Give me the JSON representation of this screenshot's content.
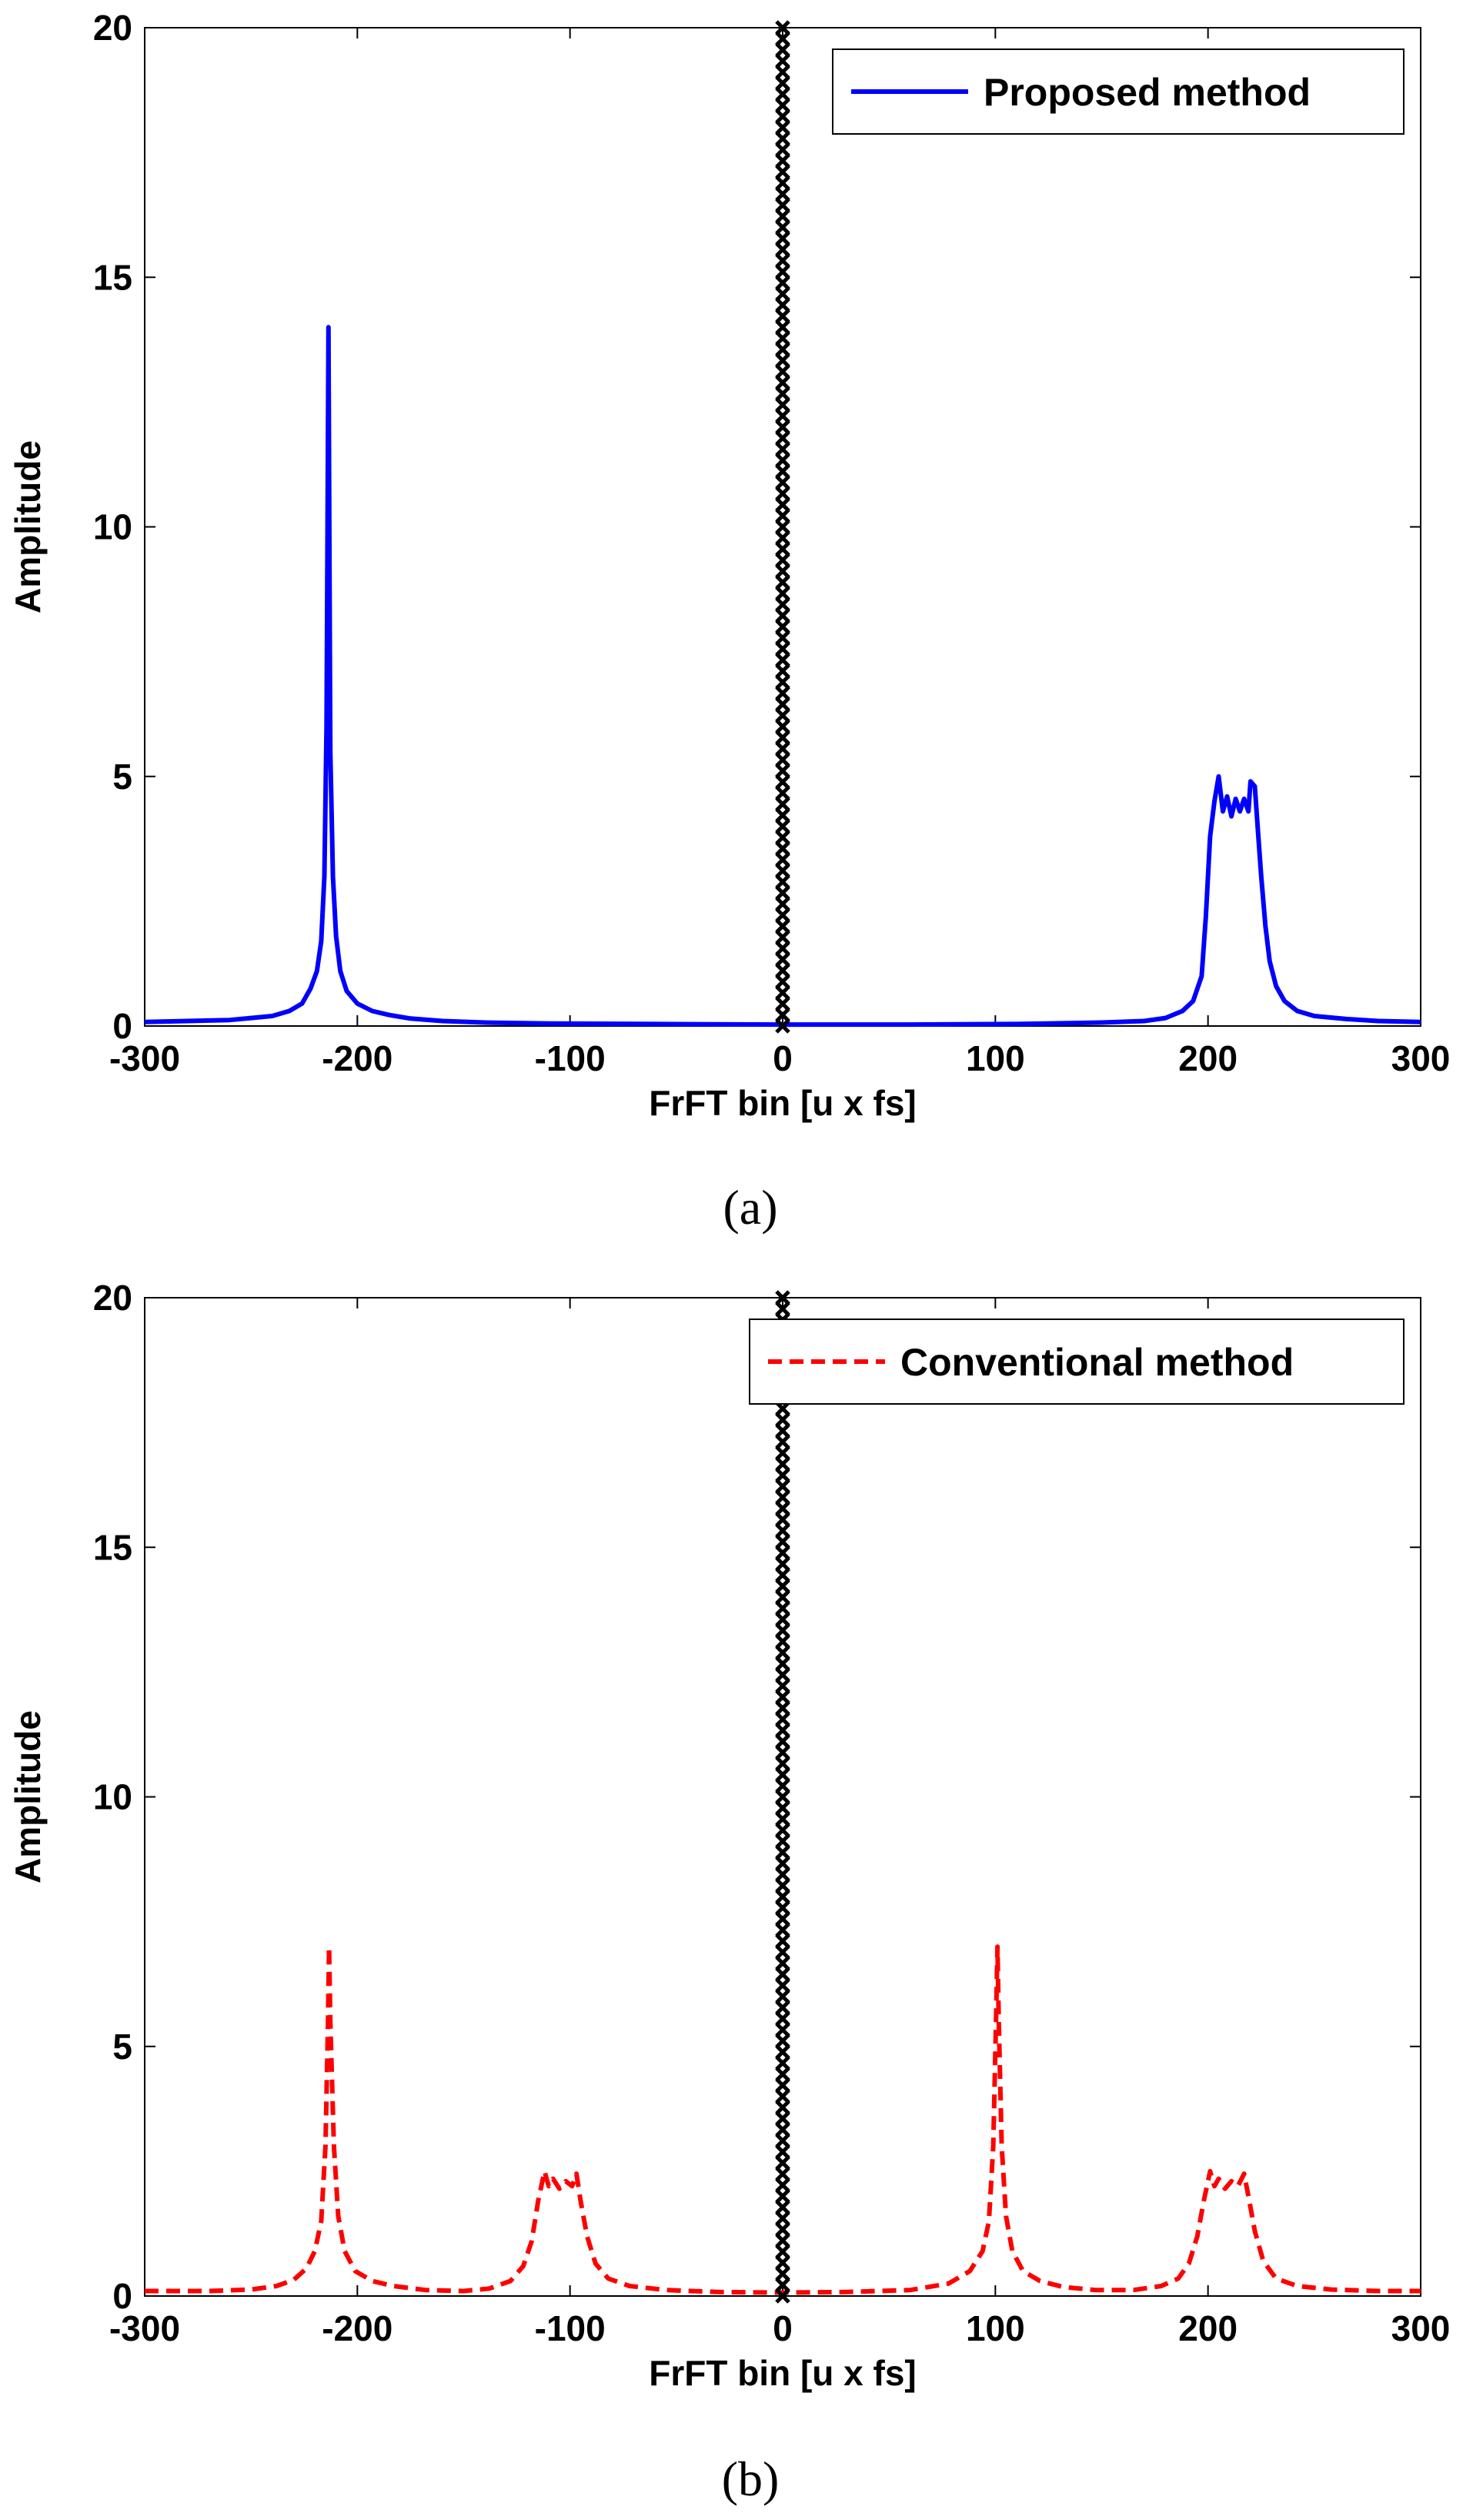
{
  "chart_data": [
    {
      "id": "a",
      "type": "line",
      "caption": "(a)",
      "xlabel": "FrFT bin [u x fs]",
      "ylabel": "Amplitude",
      "xlim": [
        -300,
        300
      ],
      "ylim": [
        0,
        20
      ],
      "xticks": [
        -300,
        -200,
        -100,
        0,
        100,
        200,
        300
      ],
      "yticks": [
        0,
        5,
        10,
        15,
        20
      ],
      "grid": false,
      "legend_position": "top-right",
      "series": [
        {
          "name": "Proposed method",
          "color": "#0000ff",
          "style": "solid",
          "points": [
            [
              -300,
              0.08
            ],
            [
              -280,
              0.1
            ],
            [
              -260,
              0.12
            ],
            [
              -250,
              0.16
            ],
            [
              -240,
              0.2
            ],
            [
              -232,
              0.3
            ],
            [
              -226,
              0.45
            ],
            [
              -222,
              0.75
            ],
            [
              -219,
              1.1
            ],
            [
              -217,
              1.7
            ],
            [
              -215.5,
              3.0
            ],
            [
              -214.5,
              6.0
            ],
            [
              -214,
              10.0
            ],
            [
              -213.6,
              14.0
            ],
            [
              -213.2,
              10.0
            ],
            [
              -212.7,
              5.5
            ],
            [
              -211.5,
              3.0
            ],
            [
              -210,
              1.8
            ],
            [
              -208,
              1.1
            ],
            [
              -205,
              0.7
            ],
            [
              -200,
              0.45
            ],
            [
              -193,
              0.3
            ],
            [
              -185,
              0.22
            ],
            [
              -175,
              0.15
            ],
            [
              -160,
              0.1
            ],
            [
              -140,
              0.07
            ],
            [
              -110,
              0.05
            ],
            [
              -60,
              0.04
            ],
            [
              -3,
              0.03
            ],
            [
              3,
              0.03
            ],
            [
              60,
              0.03
            ],
            [
              110,
              0.04
            ],
            [
              150,
              0.07
            ],
            [
              170,
              0.1
            ],
            [
              180,
              0.16
            ],
            [
              188,
              0.3
            ],
            [
              193,
              0.5
            ],
            [
              197,
              1.0
            ],
            [
              199,
              2.2
            ],
            [
              201,
              3.8
            ],
            [
              203,
              4.5
            ],
            [
              205,
              5.0
            ],
            [
              207,
              4.3
            ],
            [
              209,
              4.6
            ],
            [
              211,
              4.2
            ],
            [
              213,
              4.55
            ],
            [
              215,
              4.3
            ],
            [
              217,
              4.55
            ],
            [
              219,
              4.3
            ],
            [
              220,
              4.9
            ],
            [
              222,
              4.8
            ],
            [
              223.5,
              3.9
            ],
            [
              225,
              3.0
            ],
            [
              227,
              2.0
            ],
            [
              229,
              1.3
            ],
            [
              232,
              0.8
            ],
            [
              236,
              0.5
            ],
            [
              242,
              0.3
            ],
            [
              250,
              0.2
            ],
            [
              265,
              0.14
            ],
            [
              280,
              0.1
            ],
            [
              300,
              0.08
            ]
          ]
        },
        {
          "name": "center marker",
          "color": "#000000",
          "style": "x-markers",
          "x": 0,
          "y_from": 0,
          "y_to": 20,
          "count": 90
        }
      ]
    },
    {
      "id": "b",
      "type": "line",
      "caption": "(b)",
      "xlabel": "FrFT bin [u x fs]",
      "ylabel": "Amplitude",
      "xlim": [
        -300,
        300
      ],
      "ylim": [
        0,
        20
      ],
      "xticks": [
        -300,
        -200,
        -100,
        0,
        100,
        200,
        300
      ],
      "yticks": [
        0,
        5,
        10,
        15,
        20
      ],
      "grid": false,
      "legend_position": "top-right",
      "series": [
        {
          "name": "Conventional method",
          "color": "#ff0000",
          "style": "dashed",
          "points": [
            [
              -300,
              0.1
            ],
            [
              -270,
              0.1
            ],
            [
              -250,
              0.13
            ],
            [
              -238,
              0.2
            ],
            [
              -230,
              0.32
            ],
            [
              -224,
              0.55
            ],
            [
              -220,
              0.9
            ],
            [
              -217,
              1.5
            ],
            [
              -215,
              3.0
            ],
            [
              -213.8,
              5.5
            ],
            [
              -213.3,
              7.0
            ],
            [
              -212.7,
              5.5
            ],
            [
              -211,
              3.0
            ],
            [
              -209,
              1.6
            ],
            [
              -206,
              0.9
            ],
            [
              -201,
              0.5
            ],
            [
              -193,
              0.3
            ],
            [
              -183,
              0.2
            ],
            [
              -168,
              0.12
            ],
            [
              -150,
              0.1
            ],
            [
              -138,
              0.15
            ],
            [
              -128,
              0.3
            ],
            [
              -122,
              0.6
            ],
            [
              -118,
              1.1
            ],
            [
              -115,
              1.9
            ],
            [
              -112,
              2.5
            ],
            [
              -110,
              2.2
            ],
            [
              -108,
              2.35
            ],
            [
              -105,
              2.15
            ],
            [
              -102,
              2.3
            ],
            [
              -99,
              2.2
            ],
            [
              -97,
              2.45
            ],
            [
              -95,
              1.9
            ],
            [
              -92,
              1.2
            ],
            [
              -88,
              0.65
            ],
            [
              -82,
              0.35
            ],
            [
              -72,
              0.2
            ],
            [
              -55,
              0.12
            ],
            [
              -30,
              0.08
            ],
            [
              -3,
              0.07
            ],
            [
              3,
              0.07
            ],
            [
              30,
              0.08
            ],
            [
              60,
              0.12
            ],
            [
              78,
              0.25
            ],
            [
              88,
              0.5
            ],
            [
              94,
              0.9
            ],
            [
              97,
              1.5
            ],
            [
              99,
              3.0
            ],
            [
              100.3,
              5.5
            ],
            [
              101,
              7.0
            ],
            [
              101.6,
              5.5
            ],
            [
              103,
              3.0
            ],
            [
              105,
              1.6
            ],
            [
              108,
              0.9
            ],
            [
              113,
              0.5
            ],
            [
              121,
              0.3
            ],
            [
              132,
              0.18
            ],
            [
              147,
              0.12
            ],
            [
              165,
              0.12
            ],
            [
              178,
              0.2
            ],
            [
              186,
              0.35
            ],
            [
              191,
              0.65
            ],
            [
              195,
              1.2
            ],
            [
              198,
              1.9
            ],
            [
              201,
              2.5
            ],
            [
              203,
              2.2
            ],
            [
              205,
              2.35
            ],
            [
              208,
              2.15
            ],
            [
              211,
              2.3
            ],
            [
              214,
              2.2
            ],
            [
              217,
              2.45
            ],
            [
              219,
              2.0
            ],
            [
              222,
              1.3
            ],
            [
              226,
              0.7
            ],
            [
              232,
              0.35
            ],
            [
              242,
              0.2
            ],
            [
              258,
              0.13
            ],
            [
              280,
              0.1
            ],
            [
              300,
              0.1
            ]
          ]
        },
        {
          "name": "center marker",
          "color": "#000000",
          "style": "x-markers",
          "x": 0,
          "y_from": 0,
          "y_to": 20,
          "count": 90
        }
      ]
    }
  ]
}
